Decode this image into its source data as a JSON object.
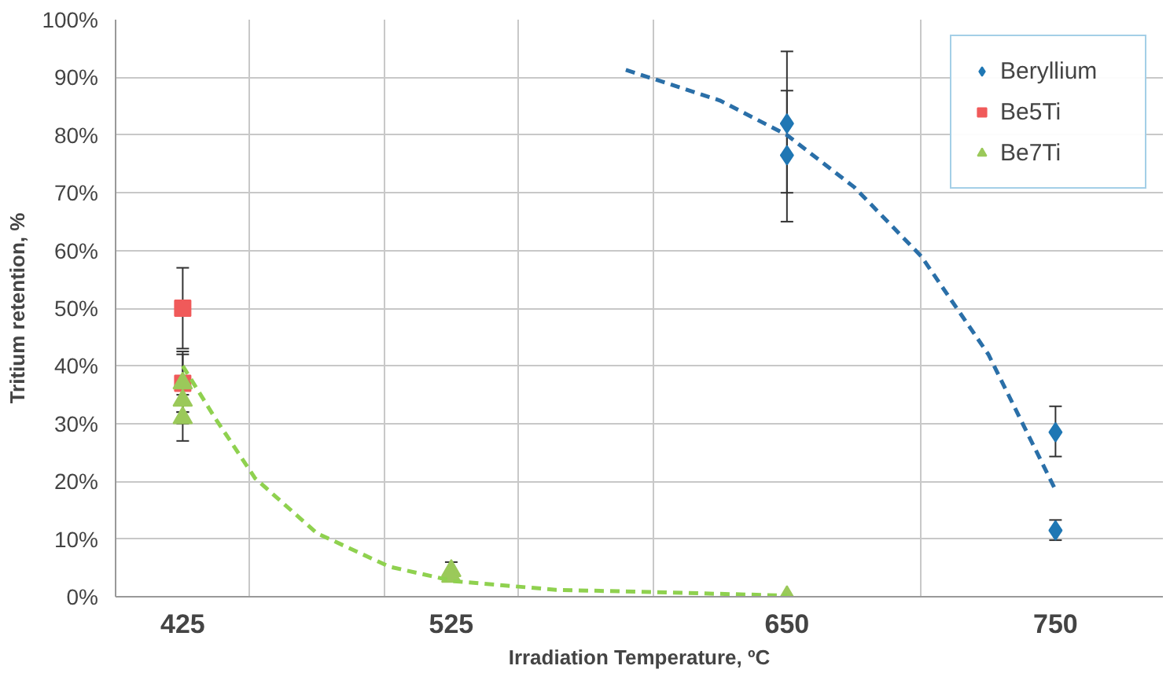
{
  "chart_data": {
    "type": "scatter",
    "xlabel": "Irradiation Temperature, ºC",
    "ylabel": "Tritium retention, %",
    "xlim": [
      400,
      790
    ],
    "ylim": [
      0,
      100
    ],
    "xticks": [
      {
        "value": 400,
        "label": null
      },
      425,
      {
        "value": 450,
        "label": null
      },
      {
        "value": 500,
        "label": null
      },
      525,
      {
        "value": 550,
        "label": null
      },
      {
        "value": 600,
        "label": null
      },
      650,
      {
        "value": 700,
        "label": null
      },
      750
    ],
    "yticks": [
      {
        "value": 0,
        "label": "0%"
      },
      {
        "value": 10,
        "label": "10%"
      },
      {
        "value": 20,
        "label": "20%"
      },
      {
        "value": 30,
        "label": "30%"
      },
      {
        "value": 40,
        "label": "40%"
      },
      {
        "value": 50,
        "label": "50%"
      },
      {
        "value": 60,
        "label": "60%"
      },
      {
        "value": 70,
        "label": "70%"
      },
      {
        "value": 80,
        "label": "80%"
      },
      {
        "value": 90,
        "label": "90%"
      },
      {
        "value": 100,
        "label": "100%"
      }
    ],
    "grid": true,
    "legend": "top right",
    "series": [
      {
        "name": "Beryllium",
        "marker": "diamond",
        "color": "#1f77b4",
        "x": [
          650,
          650,
          750,
          750
        ],
        "values": [
          82,
          76.5,
          28.5,
          11.5
        ],
        "errors": [
          [
            70,
            94.5
          ],
          [
            65,
            87.7
          ],
          [
            24.3,
            33
          ],
          [
            9.8,
            13.3
          ]
        ]
      },
      {
        "name": "Be5Ti",
        "marker": "square",
        "color": "#f05a5a",
        "x": [
          425,
          425
        ],
        "values": [
          50,
          37
        ],
        "errors": [
          [
            43,
            57
          ],
          [
            32,
            42.5
          ]
        ]
      },
      {
        "name": "Be7Ti",
        "marker": "triangle",
        "color": "#9bc95a",
        "x": [
          425,
          425,
          425,
          525,
          525,
          650
        ],
        "values": [
          37,
          34,
          31,
          4.5,
          3.5,
          0
        ],
        "errors": [
          [
            32,
            42
          ],
          [
            30,
            38
          ],
          [
            27,
            35
          ],
          [
            3,
            6
          ],
          null,
          null
        ]
      },
      {
        "type": "line",
        "line_style": "dashed",
        "marker": "none",
        "color": "#2a6fa8",
        "x": [
          590,
          625,
          650,
          675,
          700,
          725,
          750
        ],
        "values": [
          91.3,
          86,
          80,
          71,
          59,
          42,
          18.5
        ]
      },
      {
        "type": "line",
        "line_style": "dashed",
        "marker": "none",
        "color": "#8fd14f",
        "x": [
          425,
          437,
          452,
          475,
          502,
          526,
          564,
          600,
          650
        ],
        "values": [
          40,
          31,
          20.5,
          11,
          5.2,
          2.7,
          1.2,
          0.8,
          0.2
        ]
      }
    ]
  }
}
